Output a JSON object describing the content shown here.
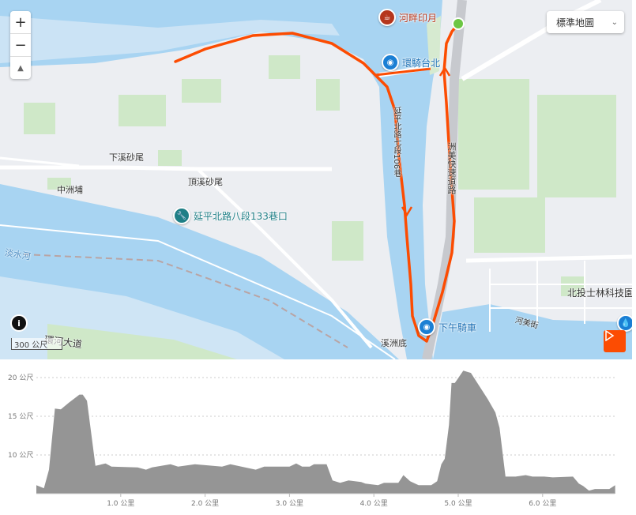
{
  "map": {
    "controls": {
      "zoom_in": "+",
      "zoom_out": "−",
      "compass": "▲"
    },
    "map_type": {
      "selected": "標準地圖",
      "icon": "chevron-down-icon"
    },
    "scale_label": "300 公尺",
    "info_icon": "i",
    "play_icon": "play-icon",
    "route_color": "#fc4c02",
    "start_color": "#6cc644",
    "places": {
      "xia_xi": "下溪砂尾",
      "zhong_zhou": "中洲埔",
      "ding_xi": "頂溪砂尾",
      "tamsui_river": "淡水河",
      "xi_zhou_di": "溪洲底",
      "tech_park": "北投士林科技園",
      "he_mei_st": "河美街",
      "huan_he": "環河大道",
      "yanping_lane": "延平北路七段106巷",
      "zhoumei_expwy": "洲美快速道路"
    },
    "pois": [
      {
        "label": "河畔印月",
        "icon": "cup-icon",
        "color": "#b5361c"
      },
      {
        "label": "環騎台北",
        "icon": "camera-icon",
        "color": "#1a7fd4"
      },
      {
        "label": "下午騎車",
        "icon": "camera-icon",
        "color": "#1a7fd4"
      },
      {
        "label": "延平北路八段133巷口",
        "icon": "wrench-icon",
        "color": "#1f7f86"
      }
    ]
  },
  "chart_data": {
    "type": "area",
    "title": "",
    "xlabel": "",
    "ylabel": "",
    "x_unit": "公里",
    "y_unit": "公尺",
    "xlim": [
      0,
      6.86
    ],
    "ylim": [
      5,
      21
    ],
    "grid": true,
    "fill_color": "#959595",
    "x_ticks": [
      "1.0 公里",
      "2.0 公里",
      "3.0 公里",
      "4.0 公里",
      "5.0 公里",
      "6.0 公里"
    ],
    "y_ticks": [
      "10 公尺",
      "15 公尺",
      "20 公尺"
    ],
    "x": [
      0,
      0.09,
      0.15,
      0.22,
      0.29,
      0.39,
      0.51,
      0.55,
      0.6,
      0.7,
      0.82,
      0.89,
      1.2,
      1.3,
      1.37,
      1.59,
      1.68,
      1.88,
      2.2,
      2.3,
      2.6,
      2.7,
      3.0,
      3.08,
      3.15,
      3.24,
      3.29,
      3.44,
      3.51,
      3.6,
      3.7,
      3.85,
      3.9,
      4.05,
      4.12,
      4.29,
      4.35,
      4.43,
      4.53,
      4.68,
      4.75,
      4.8,
      4.84,
      4.89,
      4.92,
      4.96,
      5.06,
      5.15,
      5.25,
      5.35,
      5.44,
      5.49,
      5.56,
      5.68,
      5.8,
      5.88,
      6.02,
      6.12,
      6.36,
      6.43,
      6.48,
      6.55,
      6.62,
      6.79,
      6.86
    ],
    "y": [
      6.1,
      5.7,
      8.1,
      16.0,
      15.9,
      16.8,
      17.8,
      17.8,
      17.0,
      8.6,
      8.9,
      8.5,
      8.4,
      8.1,
      8.4,
      8.8,
      8.5,
      8.8,
      8.5,
      8.8,
      8.1,
      8.5,
      8.5,
      8.9,
      8.5,
      8.5,
      8.8,
      8.8,
      6.7,
      6.4,
      6.7,
      6.5,
      6.3,
      6.1,
      6.4,
      6.4,
      7.4,
      6.6,
      6.1,
      6.1,
      6.6,
      8.8,
      9.5,
      13.9,
      19.3,
      19.3,
      20.9,
      20.6,
      18.9,
      17.2,
      15.5,
      13.5,
      7.2,
      7.2,
      7.4,
      7.2,
      7.2,
      7.1,
      7.2,
      6.3,
      6.0,
      5.4,
      5.6,
      5.6,
      6.1
    ]
  }
}
